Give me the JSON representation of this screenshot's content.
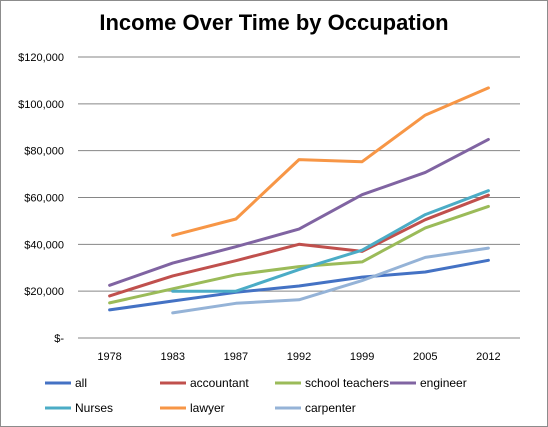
{
  "chart_data": {
    "type": "line",
    "title": "Income Over Time by Occupation",
    "xlabel": "",
    "ylabel": "",
    "categories": [
      "1978",
      "1983",
      "1987",
      "1992",
      "1999",
      "2005",
      "2012"
    ],
    "ylim": [
      0,
      120000
    ],
    "yticks": [
      {
        "value": 0,
        "label": "$-"
      },
      {
        "value": 20000,
        "label": "$20,000"
      },
      {
        "value": 40000,
        "label": "$40,000"
      },
      {
        "value": 60000,
        "label": "$60,000"
      },
      {
        "value": 80000,
        "label": "$80,000"
      },
      {
        "value": 100000,
        "label": "$100,000"
      },
      {
        "value": 120000,
        "label": "$120,000"
      }
    ],
    "grid": true,
    "legend_position": "bottom",
    "series": [
      {
        "name": "all",
        "color": "#4472C4",
        "values": [
          12000,
          15800,
          19500,
          22200,
          26000,
          28200,
          33200
        ]
      },
      {
        "name": "accountant",
        "color": "#C0504D",
        "values": [
          18000,
          26500,
          33000,
          40000,
          37000,
          50500,
          61000
        ]
      },
      {
        "name": "school teachers",
        "color": "#9BBB59",
        "values": [
          15000,
          21000,
          27000,
          30500,
          32500,
          47000,
          56200
        ]
      },
      {
        "name": "engineer",
        "color": "#8064A2",
        "values": [
          22500,
          32000,
          39000,
          46500,
          61200,
          70700,
          84800
        ]
      },
      {
        "name": "Nurses",
        "color": "#4BACC6",
        "values": [
          null,
          20000,
          20000,
          29200,
          37500,
          52700,
          62900
        ]
      },
      {
        "name": "lawyer",
        "color": "#F79646",
        "values": [
          null,
          43800,
          50800,
          76200,
          75300,
          95200,
          106800
        ]
      },
      {
        "name": "carpenter",
        "color": "#95B3D7",
        "values": [
          null,
          10700,
          14800,
          16300,
          24500,
          34400,
          38400
        ]
      }
    ]
  }
}
